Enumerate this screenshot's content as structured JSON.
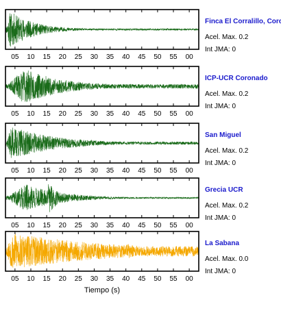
{
  "chart_data": {
    "type": "line",
    "xlabel": "Tiempo (s)",
    "tick_labels": [
      "05",
      "10",
      "15",
      "20",
      "25",
      "30",
      "35",
      "40",
      "45",
      "50",
      "55",
      "00"
    ],
    "xlim_seconds": [
      2,
      63
    ],
    "grid": false,
    "colors": {
      "title": "#1a1acc",
      "green_trace": "#1a6b1a",
      "orange_trace": "#f5a800"
    },
    "stations": [
      {
        "name": "Finca El Corralillo, Corc",
        "acel_max": "Acel. Max. 0.2",
        "int_jma": "Int JMA: 0",
        "color": "#1a6b1a",
        "peak_time_s": 3.5,
        "amplitude": 1.0,
        "decay": 0.13,
        "second_burst": null,
        "noise_floor": 0.05,
        "seed": 11
      },
      {
        "name": "ICP-UCR Coronado",
        "acel_max": "Acel. Max. 0.2",
        "int_jma": "Int JMA: 0",
        "color": "#1a6b1a",
        "peak_time_s": 8.0,
        "amplitude": 0.95,
        "decay": 0.08,
        "second_burst": null,
        "noise_floor": 0.12,
        "seed": 23
      },
      {
        "name": "San Miguel",
        "acel_max": "Acel. Max. 0.2",
        "int_jma": "Int JMA: 0",
        "color": "#1a6b1a",
        "peak_time_s": 4.0,
        "amplitude": 0.9,
        "decay": 0.07,
        "second_burst": null,
        "noise_floor": 0.08,
        "seed": 37
      },
      {
        "name": "Grecia UCR",
        "acel_max": "Acel. Max. 0.2",
        "int_jma": "Int JMA: 0",
        "color": "#1a6b1a",
        "peak_time_s": 8.5,
        "amplitude": 0.75,
        "decay": 0.09,
        "second_burst": {
          "time_s": 15.5,
          "amplitude": 1.0
        },
        "noise_floor": 0.04,
        "seed": 41
      },
      {
        "name": "La Sabana",
        "acel_max": "Acel. Max. 0.0",
        "int_jma": "Int JMA: 0",
        "color": "#f5a800",
        "peak_time_s": 4.0,
        "amplitude": 1.0,
        "decay": 0.03,
        "second_burst": {
          "time_s": 40.2,
          "amplitude": 0.5
        },
        "noise_floor": 0.28,
        "seed": 53
      }
    ]
  }
}
